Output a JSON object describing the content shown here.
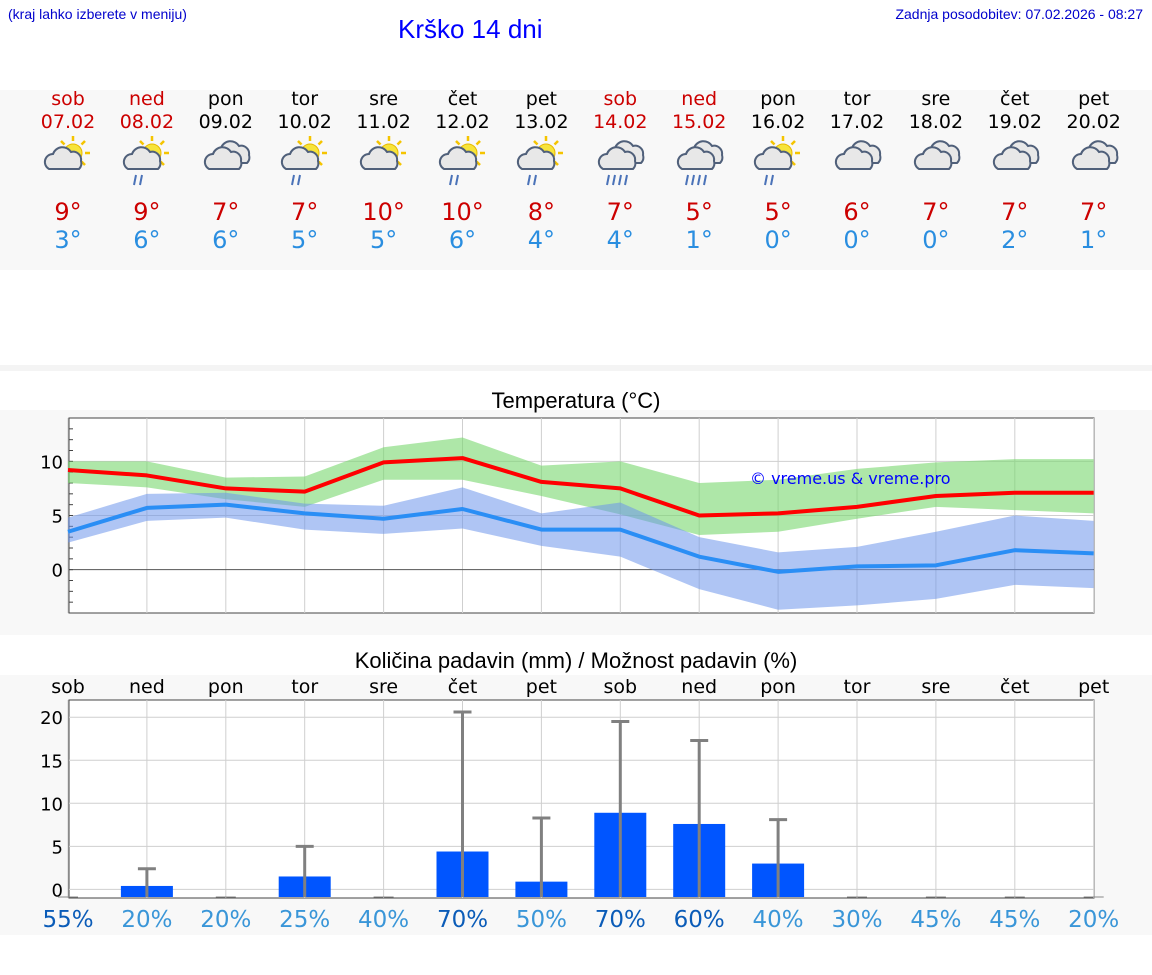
{
  "header": {
    "hint": "(kraj lahko izberete v meniju)",
    "title": "Krško 14 dni",
    "updated": "Zadnja posodobitev: 07.02.2026 - 08:27"
  },
  "colors": {
    "max": "#cc0000",
    "min": "#2a8ee0",
    "title": "#0000ff",
    "bar": "#0055ff"
  },
  "days": [
    {
      "name": "sob",
      "date": "07.02",
      "weekend": true,
      "icon": "sun-cloud-icon",
      "tmax": "9°",
      "tmin": "3°"
    },
    {
      "name": "ned",
      "date": "08.02",
      "weekend": true,
      "icon": "sun-cloud-rain-icon",
      "tmax": "9°",
      "tmin": "6°"
    },
    {
      "name": "pon",
      "date": "09.02",
      "weekend": false,
      "icon": "cloudy-icon",
      "tmax": "7°",
      "tmin": "6°"
    },
    {
      "name": "tor",
      "date": "10.02",
      "weekend": false,
      "icon": "sun-cloud-rain-icon",
      "tmax": "7°",
      "tmin": "5°"
    },
    {
      "name": "sre",
      "date": "11.02",
      "weekend": false,
      "icon": "sun-cloud-icon",
      "tmax": "10°",
      "tmin": "5°"
    },
    {
      "name": "čet",
      "date": "12.02",
      "weekend": false,
      "icon": "sun-cloud-rain-icon",
      "tmax": "10°",
      "tmin": "6°"
    },
    {
      "name": "pet",
      "date": "13.02",
      "weekend": false,
      "icon": "sun-cloud-rain-icon",
      "tmax": "8°",
      "tmin": "4°"
    },
    {
      "name": "sob",
      "date": "14.02",
      "weekend": true,
      "icon": "cloud-rain-icon",
      "tmax": "7°",
      "tmin": "4°"
    },
    {
      "name": "ned",
      "date": "15.02",
      "weekend": true,
      "icon": "cloud-rain-icon",
      "tmax": "5°",
      "tmin": "1°"
    },
    {
      "name": "pon",
      "date": "16.02",
      "weekend": false,
      "icon": "sun-cloud-rain-icon",
      "tmax": "5°",
      "tmin": "0°"
    },
    {
      "name": "tor",
      "date": "17.02",
      "weekend": false,
      "icon": "cloudy-icon",
      "tmax": "6°",
      "tmin": "0°"
    },
    {
      "name": "sre",
      "date": "18.02",
      "weekend": false,
      "icon": "cloudy-icon",
      "tmax": "7°",
      "tmin": "0°"
    },
    {
      "name": "čet",
      "date": "19.02",
      "weekend": false,
      "icon": "cloudy-icon",
      "tmax": "7°",
      "tmin": "2°"
    },
    {
      "name": "pet",
      "date": "20.02",
      "weekend": false,
      "icon": "cloudy-icon",
      "tmax": "7°",
      "tmin": "1°"
    }
  ],
  "chart_data": [
    {
      "type": "line",
      "title": "Temperatura (°C)",
      "watermark": "© vreme.us & vreme.pro",
      "ylim": [
        -4,
        14
      ],
      "yticks": [
        0,
        5,
        10
      ],
      "series": [
        {
          "name": "max",
          "values": [
            9.2,
            8.7,
            7.5,
            7.2,
            9.9,
            10.3,
            8.1,
            7.5,
            5.0,
            5.2,
            5.8,
            6.8,
            7.1,
            7.1
          ],
          "band_low": [
            8.0,
            7.6,
            6.5,
            5.8,
            8.3,
            8.3,
            6.8,
            5.1,
            3.2,
            3.5,
            4.7,
            5.8,
            5.5,
            5.2
          ],
          "band_high": [
            10.0,
            10.0,
            8.5,
            8.6,
            11.3,
            12.2,
            9.6,
            10.0,
            8.0,
            8.3,
            9.3,
            9.9,
            10.2,
            10.2
          ]
        },
        {
          "name": "min",
          "values": [
            3.5,
            5.7,
            6.0,
            5.2,
            4.7,
            5.6,
            3.7,
            3.7,
            1.2,
            -0.2,
            0.3,
            0.4,
            1.8,
            1.5
          ],
          "band_low": [
            2.5,
            4.5,
            4.8,
            3.7,
            3.3,
            3.8,
            2.2,
            1.2,
            -1.8,
            -3.7,
            -3.3,
            -2.7,
            -1.4,
            -1.7
          ],
          "band_high": [
            4.8,
            7.0,
            7.1,
            6.1,
            5.9,
            7.6,
            5.2,
            6.2,
            3.0,
            1.6,
            2.1,
            3.5,
            5.0,
            4.5
          ]
        }
      ]
    },
    {
      "type": "bar",
      "title": "Količina padavin (mm) / Možnost padavin (%)",
      "categories": [
        "sob",
        "ned",
        "pon",
        "tor",
        "sre",
        "čet",
        "pet",
        "sob",
        "ned",
        "pon",
        "tor",
        "sre",
        "čet",
        "pet"
      ],
      "values": [
        0,
        0.4,
        0,
        1.5,
        0,
        4.4,
        0.9,
        8.9,
        7.6,
        3.0,
        0,
        0,
        0,
        0
      ],
      "error_high": [
        0,
        2.4,
        0,
        5.0,
        0,
        20.6,
        8.3,
        19.5,
        17.3,
        8.1,
        0,
        0,
        0,
        0
      ],
      "probability": [
        "55%",
        "20%",
        "20%",
        "25%",
        "40%",
        "70%",
        "50%",
        "70%",
        "60%",
        "40%",
        "30%",
        "45%",
        "45%",
        "20%"
      ],
      "ylim": [
        -1,
        22
      ],
      "yticks": [
        0,
        5,
        10,
        15,
        20
      ]
    }
  ]
}
